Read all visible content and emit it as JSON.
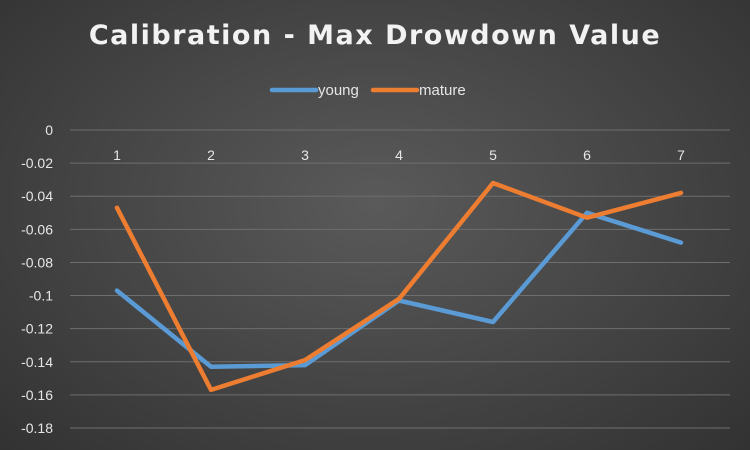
{
  "chart_data": {
    "type": "line",
    "title": "Calibration  - Max Drowdown Value",
    "xlabel": "",
    "ylabel": "",
    "categories": [
      "1",
      "2",
      "3",
      "4",
      "5",
      "6",
      "7"
    ],
    "y_ticks": [
      "0",
      "-0.02",
      "-0.04",
      "-0.06",
      "-0.08",
      "-0.1",
      "-0.12",
      "-0.14",
      "-0.16",
      "-0.18"
    ],
    "ylim": [
      -0.18,
      0
    ],
    "grid": true,
    "legend_position": "top",
    "series": [
      {
        "name": "young",
        "color": "#5b9bd5",
        "values": [
          -0.097,
          -0.143,
          -0.142,
          -0.103,
          -0.116,
          -0.05,
          -0.068
        ]
      },
      {
        "name": "mature",
        "color": "#ed7d31",
        "values": [
          -0.047,
          -0.157,
          -0.139,
          -0.102,
          -0.032,
          -0.053,
          -0.038
        ]
      }
    ]
  }
}
